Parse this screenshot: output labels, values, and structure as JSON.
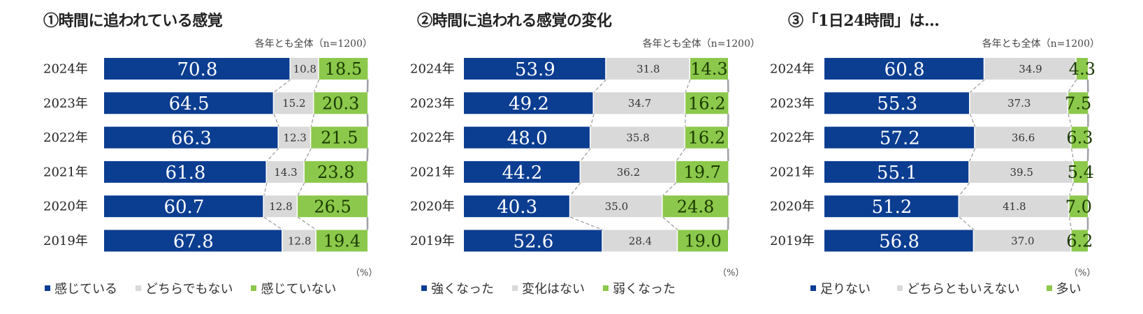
{
  "colors": {
    "series1": "#0b3d91",
    "series2": "#d9d9d9",
    "series3": "#8cc84b",
    "connector": "#999999"
  },
  "chart_data": [
    {
      "type": "bar",
      "orientation": "horizontal-stacked-100",
      "title": "①時間に追われている感覚",
      "note": "各年とも全体（n=1200）",
      "unit": "（%）",
      "categories": [
        "2024年",
        "2023年",
        "2022年",
        "2021年",
        "2020年",
        "2019年"
      ],
      "series": [
        {
          "name": "感じている",
          "values": [
            70.8,
            64.5,
            66.3,
            61.8,
            60.7,
            67.8
          ]
        },
        {
          "name": "どちらでもない",
          "values": [
            10.8,
            15.2,
            12.3,
            14.3,
            12.8,
            12.8
          ]
        },
        {
          "name": "感じていない",
          "values": [
            18.5,
            20.3,
            21.5,
            23.8,
            26.5,
            19.4
          ]
        }
      ],
      "xlim": [
        0,
        100
      ],
      "legend": "bottom"
    },
    {
      "type": "bar",
      "orientation": "horizontal-stacked-100",
      "title": "②時間に追われる感覚の変化",
      "note": "各年とも全体（n=1200）",
      "unit": "（%）",
      "categories": [
        "2024年",
        "2023年",
        "2022年",
        "2021年",
        "2020年",
        "2019年"
      ],
      "series": [
        {
          "name": "強くなった",
          "values": [
            53.9,
            49.2,
            48.0,
            44.2,
            40.3,
            52.6
          ]
        },
        {
          "name": "変化はない",
          "values": [
            31.8,
            34.7,
            35.8,
            36.2,
            35.0,
            28.4
          ]
        },
        {
          "name": "弱くなった",
          "values": [
            14.3,
            16.2,
            16.2,
            19.7,
            24.8,
            19.0
          ]
        }
      ],
      "xlim": [
        0,
        100
      ],
      "legend": "bottom"
    },
    {
      "type": "bar",
      "orientation": "horizontal-stacked-100",
      "title": "③「1日24時間」は…",
      "note": "各年とも全体（n=1200）",
      "unit": "（%）",
      "categories": [
        "2024年",
        "2023年",
        "2022年",
        "2021年",
        "2020年",
        "2019年"
      ],
      "series": [
        {
          "name": "足りない",
          "values": [
            60.8,
            55.3,
            57.2,
            55.1,
            51.2,
            56.8
          ]
        },
        {
          "name": "どちらともいえない",
          "values": [
            34.9,
            37.3,
            36.6,
            39.5,
            41.8,
            37.0
          ]
        },
        {
          "name": "多い",
          "values": [
            4.3,
            7.5,
            6.3,
            5.4,
            7.0,
            6.2
          ]
        }
      ],
      "xlim": [
        0,
        100
      ],
      "legend": "bottom"
    }
  ]
}
